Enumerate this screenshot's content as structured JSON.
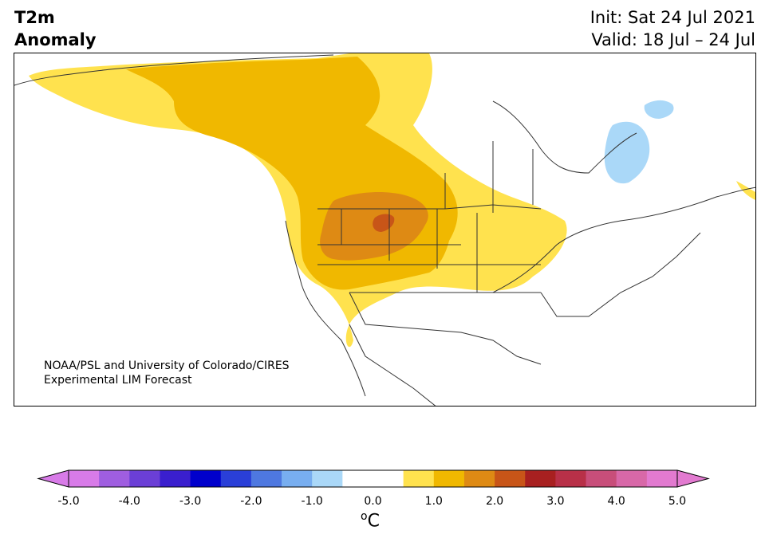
{
  "title": {
    "line1": "T2m",
    "line2": "Anomaly"
  },
  "info": {
    "init": "Init: Sat 24 Jul 2021",
    "valid": "Valid: 18 Jul – 24 Jul"
  },
  "credit": {
    "line1": "NOAA/PSL and University of Colorado/CIRES",
    "line2": "Experimental LIM Forecast"
  },
  "colorbar": {
    "ticks": [
      "-5.0",
      "-4.0",
      "-3.0",
      "-2.0",
      "-1.0",
      "0.0",
      "1.0",
      "2.0",
      "3.0",
      "4.0",
      "5.0"
    ],
    "unit_base": "C",
    "unit_sup": "o",
    "colors": [
      "#d87be8",
      "#9f5ee0",
      "#6b3fd6",
      "#3a1fce",
      "#0000cc",
      "#2a3fd8",
      "#4e78e0",
      "#78aef0",
      "#aad8f8",
      "#ffffff",
      "#ffffff",
      "#ffe24e",
      "#f0b800",
      "#de8a14",
      "#c85518",
      "#a82020",
      "#b83048",
      "#c84e7a",
      "#d868a8",
      "#e27ad0"
    ],
    "under_color": "#d87be8",
    "over_color": "#e27ad0"
  },
  "map": {
    "legend_colors": {
      "c1": "#ffe24e",
      "c2": "#f0b800",
      "c3": "#de8a14",
      "c4": "#c85518",
      "cold": "#aad8f8"
    }
  }
}
